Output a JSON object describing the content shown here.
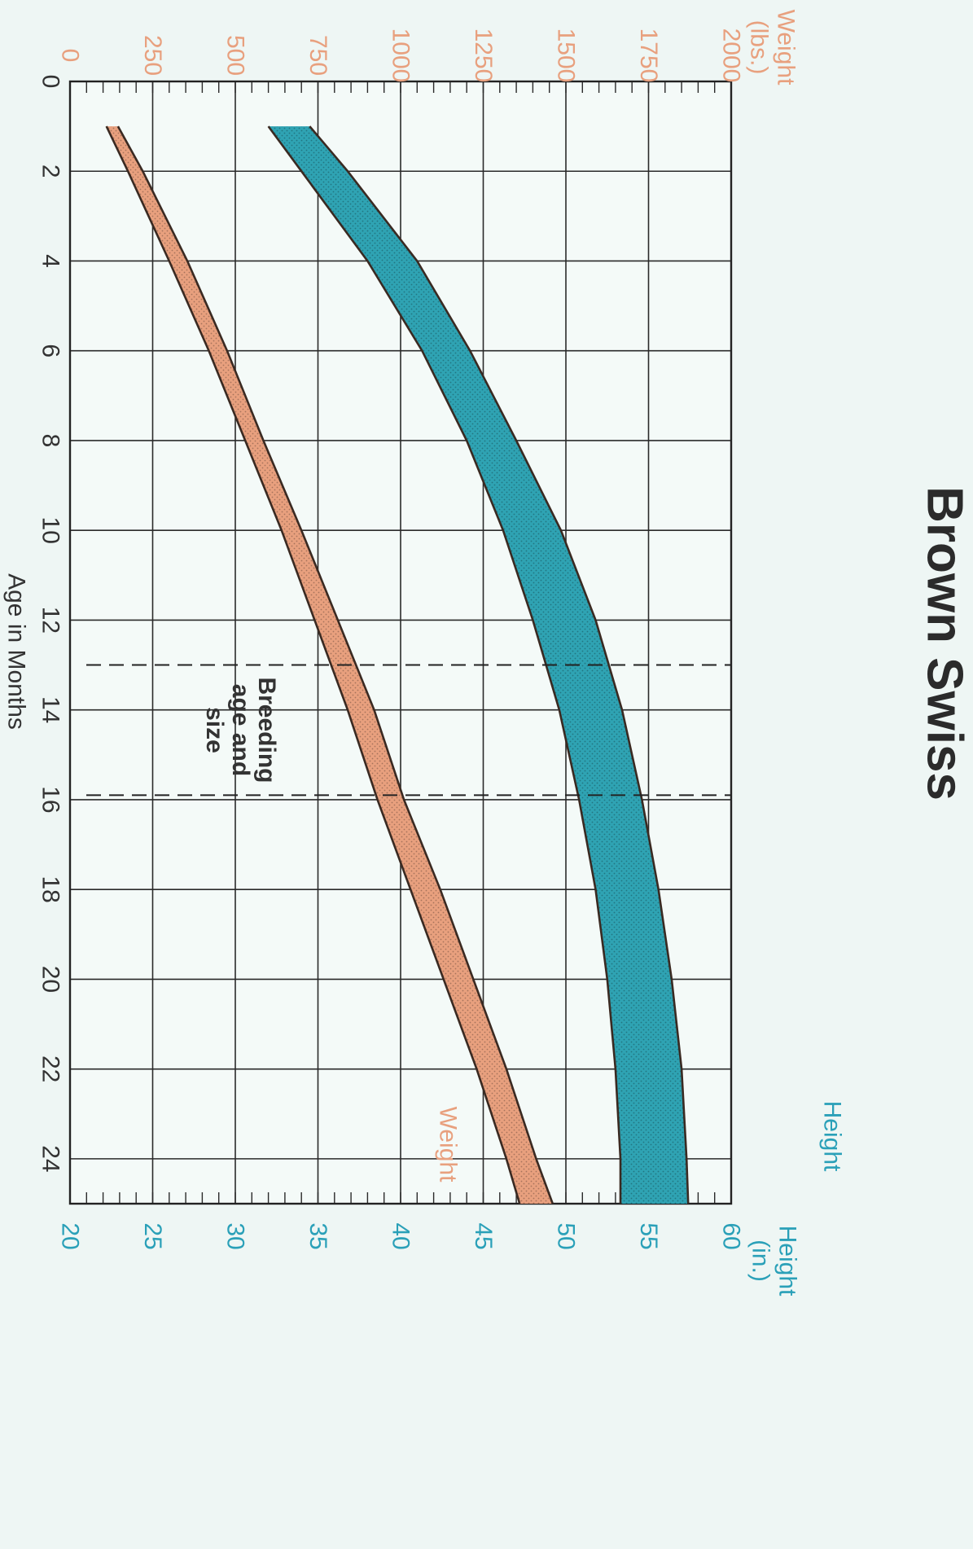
{
  "chart_data": {
    "type": "area",
    "title": "Brown Swiss",
    "xlabel": "Age in Months",
    "xlim": [
      0,
      25
    ],
    "x_ticks": [
      0,
      2,
      4,
      6,
      8,
      10,
      12,
      14,
      16,
      18,
      20,
      22,
      24
    ],
    "weight_axis": {
      "label_line1": "Weight",
      "label_line2": "(lbs.)",
      "range": [
        0,
        2000
      ],
      "ticks": [
        0,
        250,
        500,
        750,
        1000,
        1250,
        1500,
        1750,
        2000
      ]
    },
    "height_axis": {
      "label_line1": "Height",
      "label_line2": "(in.)",
      "range": [
        20,
        60
      ],
      "ticks": [
        20,
        25,
        30,
        35,
        40,
        45,
        50,
        55,
        60
      ]
    },
    "series": [
      {
        "name": "Weight",
        "axis": "weight",
        "color": "#e8a07e",
        "label_color": "#e8a07e",
        "x": [
          1,
          2,
          4,
          6,
          8,
          10,
          12,
          14,
          16,
          18,
          20,
          22,
          24,
          25
        ],
        "lower": [
          110,
          175,
          300,
          420,
          530,
          640,
          740,
          840,
          930,
          1030,
          1130,
          1230,
          1320,
          1360
        ],
        "upper": [
          145,
          220,
          355,
          475,
          585,
          700,
          810,
          920,
          1010,
          1120,
          1220,
          1320,
          1410,
          1460
        ]
      },
      {
        "name": "Height",
        "axis": "height",
        "color": "#2fa3b3",
        "label_color": "#2aa0b8",
        "x": [
          1,
          2,
          4,
          6,
          8,
          10,
          12,
          14,
          16,
          18,
          20,
          22,
          24,
          25
        ],
        "lower": [
          32.0,
          34.0,
          38.0,
          41.3,
          44.0,
          46.2,
          48.0,
          49.6,
          50.8,
          51.8,
          52.5,
          53.0,
          53.3,
          53.3
        ],
        "upper": [
          34.5,
          36.8,
          41.0,
          44.2,
          47.0,
          49.7,
          51.8,
          53.4,
          54.6,
          55.6,
          56.4,
          57.0,
          57.3,
          57.4
        ]
      }
    ],
    "annotation": {
      "lines": [
        "Breeding",
        "age and",
        "size"
      ],
      "x_start": 13,
      "x_end": 15.9
    }
  }
}
